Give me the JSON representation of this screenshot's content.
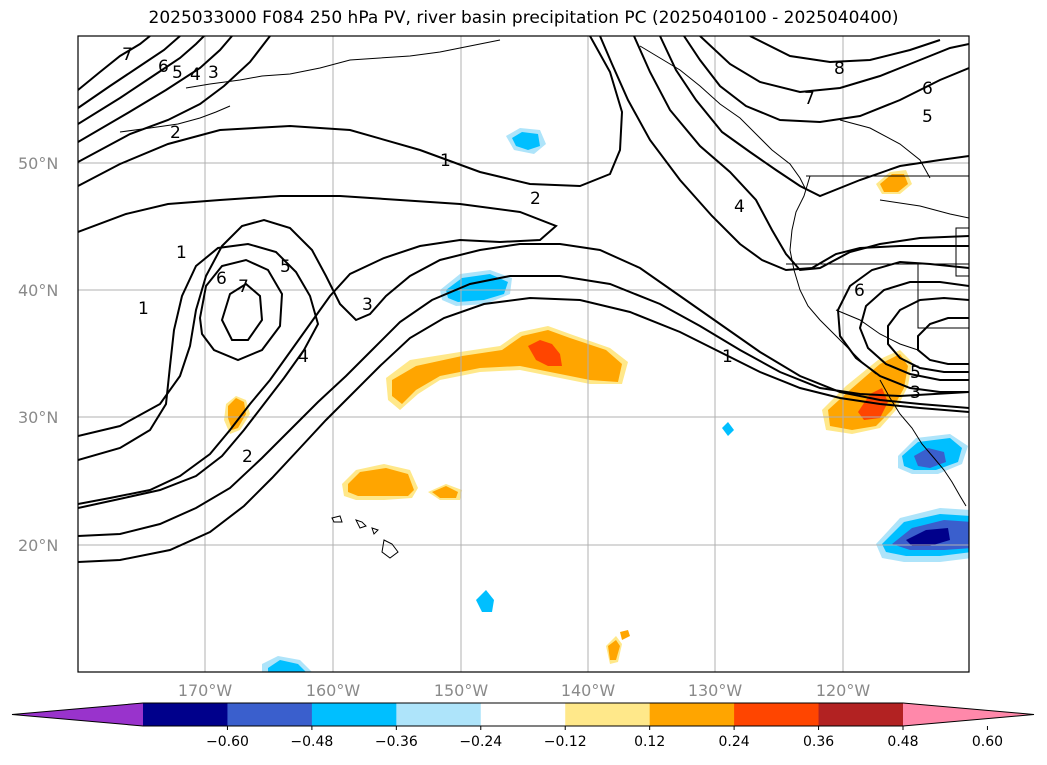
{
  "title": "2025033000 F084 250 hPa PV, river basin precipitation PC (2025040100 - 2025040400)",
  "lat_labels": [
    "50°N",
    "40°N",
    "30°N",
    "20°N"
  ],
  "lon_labels": [
    "170°W",
    "160°W",
    "150°W",
    "140°W",
    "130°W",
    "120°W"
  ],
  "colorbar": {
    "ticks": [
      "−0.60",
      "−0.48",
      "−0.36",
      "−0.24",
      "−0.12",
      "0.12",
      "0.24",
      "0.36",
      "0.48",
      "0.60"
    ],
    "colors": [
      "#9933cc",
      "#00008b",
      "#3a5fcd",
      "#00bfff",
      "#aee4fa",
      "#ffffff",
      "#ffe88a",
      "#ffa500",
      "#ff4500",
      "#b22222",
      "#ff88aa"
    ]
  },
  "contour_labels": [
    "7",
    "6",
    "5",
    "4",
    "3",
    "2",
    "1",
    "2",
    "1",
    "8",
    "7",
    "6",
    "5",
    "4",
    "5",
    "6",
    "7",
    "1",
    "4",
    "3",
    "2",
    "1",
    "6",
    "5",
    "3"
  ]
}
